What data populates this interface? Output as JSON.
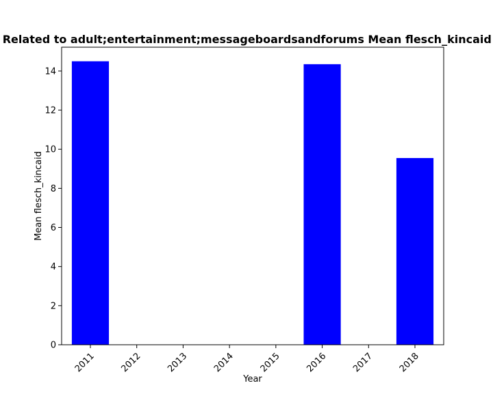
{
  "chart_data": {
    "type": "bar",
    "title": "Related to adult;entertainment;messageboardsandforums Mean flesch_kincaid in",
    "xlabel": "Year",
    "ylabel": "Mean flesch_kincaid",
    "categories": [
      "2011",
      "2012",
      "2013",
      "2014",
      "2015",
      "2016",
      "2017",
      "2018"
    ],
    "values": [
      14.5,
      0,
      0,
      0,
      0,
      14.35,
      0,
      9.55
    ],
    "ylim": [
      0,
      15.22
    ],
    "yticks": [
      0,
      2,
      4,
      6,
      8,
      10,
      12,
      14
    ],
    "bar_color": "#0000ff",
    "grid": false,
    "legend": "none"
  }
}
